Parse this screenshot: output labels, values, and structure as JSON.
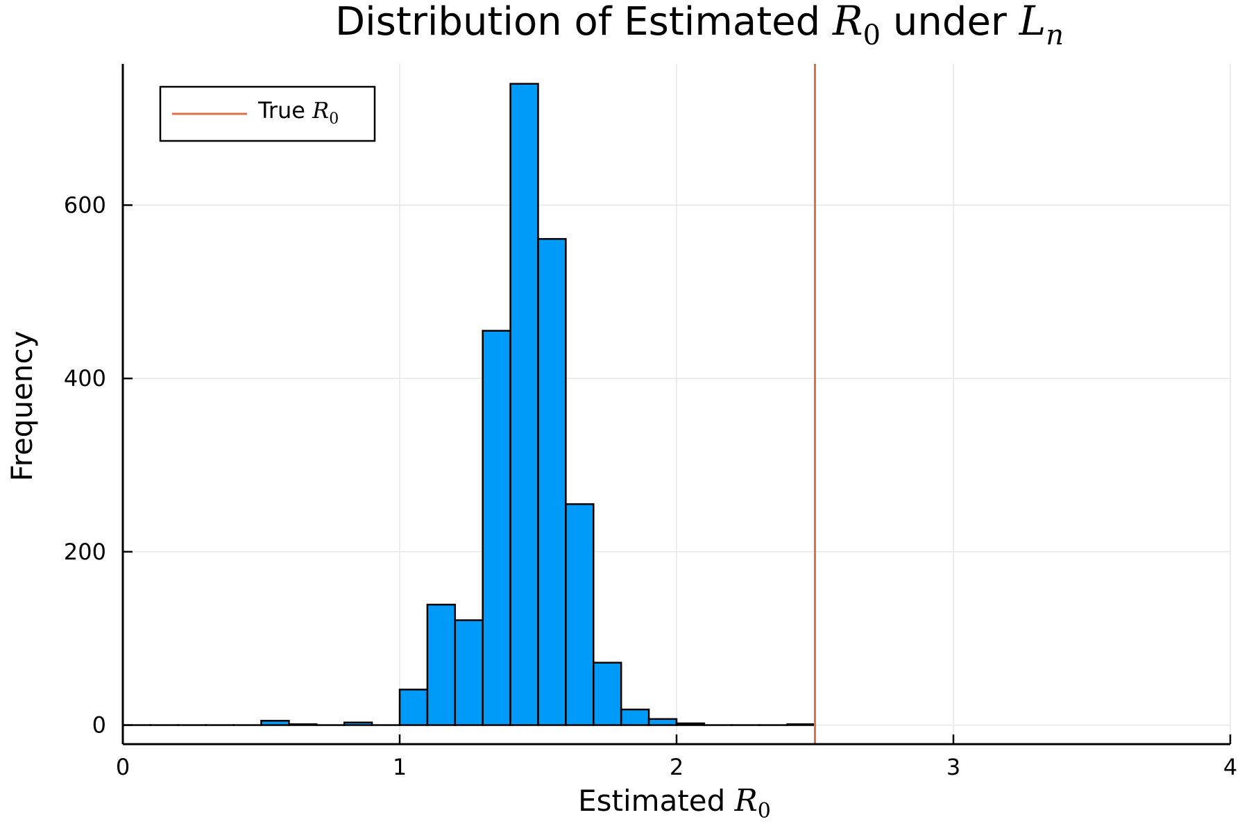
{
  "chart_data": {
    "type": "bar",
    "title": {
      "prefix": "Distribution of Estimated ",
      "var1": "R",
      "var1_sub": "0",
      "middle": " under ",
      "var2": "L",
      "var2_sub": "n"
    },
    "xlabel": {
      "text": "Estimated ",
      "var": "R",
      "sub": "0"
    },
    "ylabel": "Frequency",
    "xlim": [
      0,
      4
    ],
    "ylim": [
      -22,
      763
    ],
    "xticks": [
      0,
      1,
      2,
      3,
      4
    ],
    "xtick_labels": [
      "0",
      "1",
      "2",
      "3",
      "4"
    ],
    "yticks": [
      0,
      200,
      400,
      600
    ],
    "ytick_labels": [
      "0",
      "200",
      "400",
      "600"
    ],
    "grid": true,
    "legend_position": "top-left",
    "bin_width": 0.1,
    "bin_edges": [
      0.0,
      0.1,
      0.2,
      0.3,
      0.4,
      0.5,
      0.6,
      0.7,
      0.8,
      0.9,
      1.0,
      1.1,
      1.2,
      1.3,
      1.4,
      1.5,
      1.6,
      1.7,
      1.8,
      1.9,
      2.0,
      2.1,
      2.2,
      2.3,
      2.4,
      2.5
    ],
    "counts": [
      0,
      0,
      0,
      0,
      0,
      5,
      1,
      0,
      3,
      0,
      41,
      139,
      121,
      455,
      740,
      561,
      255,
      72,
      18,
      7,
      2,
      0,
      0,
      0,
      1
    ],
    "bar_color": "#009af9",
    "reference_line": {
      "x": 2.5,
      "label_text": "True ",
      "label_var": "R",
      "label_sub": "0",
      "color": "#e26f46"
    }
  }
}
